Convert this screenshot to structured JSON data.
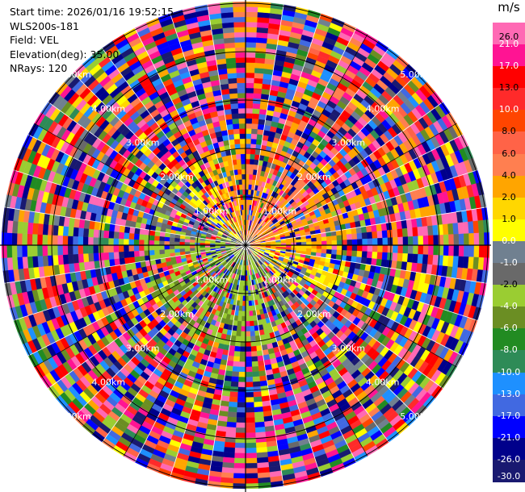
{
  "header": {
    "start_time": "Start time: 2026/01/16 19:52:15",
    "instrument": "WLS200s-181",
    "field": "Field: VEL",
    "elevation": "Elevation(deg): 35.00",
    "nrays": "NRays: 120"
  },
  "colorbar": {
    "unit": "m/s",
    "ticks": [
      "26.0",
      "21.0",
      "17.0",
      "13.0",
      "10.0",
      "8.0",
      "6.0",
      "4.0",
      "2.0",
      "1.0",
      "0.0",
      "-1.0",
      "-2.0",
      "-4.0",
      "-6.0",
      "-8.0",
      "-10.0",
      "-13.0",
      "-17.0",
      "-21.0",
      "-26.0",
      "-30.0"
    ],
    "colors": [
      "#ff69b4",
      "#ff1493",
      "#ff0000",
      "#ff2a2a",
      "#ff4500",
      "#ff6347",
      "#ff7f50",
      "#ffa500",
      "#ffd700",
      "#ffff00",
      "#708090",
      "#696969",
      "#9acd32",
      "#6b8e23",
      "#228b22",
      "#2e8b57",
      "#1e90ff",
      "#4169e1",
      "#0000ff",
      "#00008b",
      "#191970"
    ]
  },
  "chart_data": {
    "type": "ppi",
    "field": "VEL",
    "nrays": 120,
    "elevation_deg": 35.0,
    "range_rings": [
      "1.00km",
      "2.00km",
      "3.00km",
      "4.00km",
      "5.00km"
    ],
    "range_rings_km": [
      1,
      2,
      3,
      4,
      5
    ],
    "max_range_km": 5,
    "vmin": -30.0,
    "vmax": 26.0,
    "pattern": "aliased velocity; near-field (< ~2 km) shows approaching (yellow/orange) on the west-southwest side and receding (green/blue) on the north, far field is highly noisy"
  }
}
